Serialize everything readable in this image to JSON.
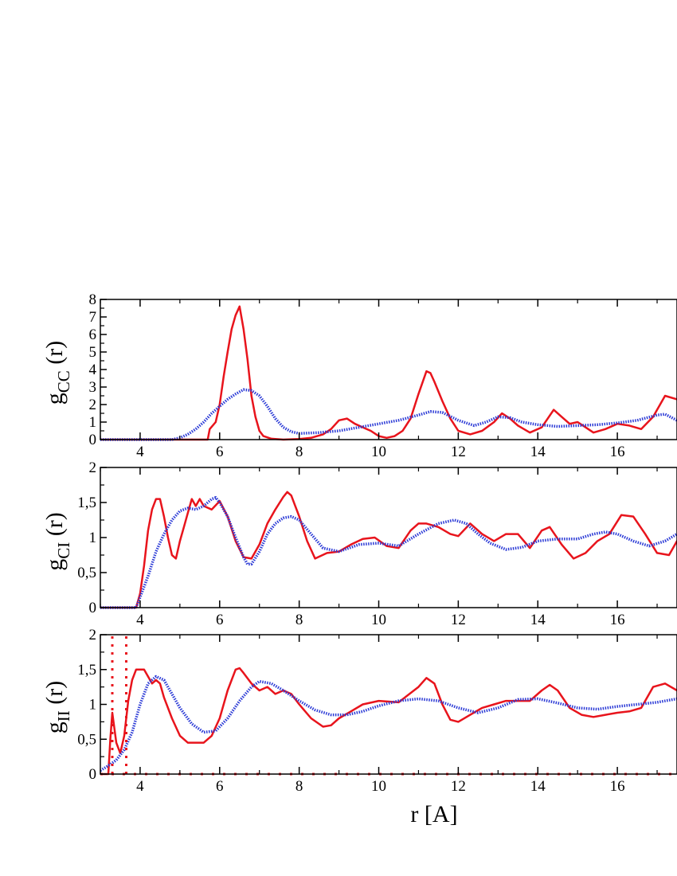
{
  "colors": {
    "md": "#e8141c",
    "avg": "#2b3ad6",
    "axis": "#000000"
  },
  "chart_data": [
    {
      "type": "line",
      "ylabel_main": "g",
      "ylabel_sub": "CC",
      "ylabel_tail": " (r)",
      "xlim": [
        3,
        17.5
      ],
      "ylim": [
        0,
        8
      ],
      "xticks": [
        4,
        6,
        8,
        10,
        12,
        14,
        16
      ],
      "yticks": [
        0,
        1,
        2,
        3,
        4,
        5,
        6,
        7,
        8
      ],
      "ytick_labels": [
        "0",
        "1",
        "2",
        "3",
        "4",
        "5",
        "6",
        "7",
        "8"
      ],
      "series": [
        {
          "x": [
            3.0,
            5.7,
            5.75,
            5.9,
            6.0,
            6.1,
            6.2,
            6.3,
            6.4,
            6.5,
            6.6,
            6.7,
            6.8,
            6.9,
            7.0,
            7.1,
            7.3,
            7.6,
            8.0,
            8.3,
            8.6,
            8.8,
            9.0,
            9.2,
            9.4,
            9.6,
            9.8,
            10.0,
            10.2,
            10.4,
            10.6,
            10.8,
            11.0,
            11.2,
            11.3,
            11.4,
            11.6,
            11.8,
            12.0,
            12.3,
            12.6,
            12.9,
            13.1,
            13.3,
            13.5,
            13.8,
            14.1,
            14.4,
            14.6,
            14.8,
            15.0,
            15.2,
            15.4,
            15.7,
            16.0,
            16.3,
            16.6,
            16.9,
            17.2,
            17.5
          ],
          "y": [
            0,
            0,
            0.6,
            1.0,
            2.0,
            3.6,
            5.0,
            6.3,
            7.1,
            7.6,
            6.3,
            4.6,
            2.5,
            1.3,
            0.5,
            0.2,
            0.05,
            0,
            0.03,
            0.1,
            0.3,
            0.6,
            1.1,
            1.2,
            0.9,
            0.7,
            0.5,
            0.2,
            0.1,
            0.2,
            0.5,
            1.2,
            2.6,
            3.9,
            3.8,
            3.3,
            2.2,
            1.2,
            0.5,
            0.3,
            0.5,
            1.0,
            1.5,
            1.2,
            0.8,
            0.4,
            0.7,
            1.7,
            1.3,
            0.9,
            1.0,
            0.7,
            0.4,
            0.6,
            0.9,
            0.8,
            0.6,
            1.3,
            2.5,
            2.3
          ]
        },
        {
          "x": [
            3.0,
            4.8,
            5.0,
            5.2,
            5.4,
            5.6,
            5.8,
            6.0,
            6.2,
            6.4,
            6.6,
            6.8,
            7.0,
            7.2,
            7.4,
            7.6,
            7.8,
            8.0,
            8.5,
            9.0,
            9.5,
            10.0,
            10.5,
            11.0,
            11.3,
            11.6,
            12.0,
            12.4,
            12.7,
            13.0,
            13.3,
            13.6,
            14.0,
            14.5,
            15.0,
            15.5,
            16.0,
            16.5,
            17.0,
            17.2,
            17.5
          ],
          "y": [
            0,
            0,
            0.1,
            0.3,
            0.6,
            1.0,
            1.5,
            1.9,
            2.3,
            2.6,
            2.85,
            2.8,
            2.5,
            1.9,
            1.2,
            0.7,
            0.45,
            0.35,
            0.4,
            0.5,
            0.7,
            0.9,
            1.1,
            1.4,
            1.6,
            1.55,
            1.1,
            0.8,
            1.0,
            1.3,
            1.25,
            1.0,
            0.85,
            0.75,
            0.8,
            0.85,
            0.95,
            1.1,
            1.4,
            1.45,
            1.1
          ]
        }
      ]
    },
    {
      "type": "line",
      "ylabel_main": "g",
      "ylabel_sub": "CI",
      "ylabel_tail": " (r)",
      "xlim": [
        3,
        17.5
      ],
      "ylim": [
        0,
        2
      ],
      "xticks": [
        4,
        6,
        8,
        10,
        12,
        14,
        16
      ],
      "yticks": [
        0,
        0.5,
        1,
        1.5,
        2
      ],
      "ytick_labels": [
        "0",
        "0,5",
        "1",
        "1,5",
        "2"
      ],
      "series": [
        {
          "x": [
            3.0,
            3.9,
            4.0,
            4.1,
            4.2,
            4.3,
            4.4,
            4.5,
            4.6,
            4.7,
            4.8,
            4.9,
            5.0,
            5.1,
            5.2,
            5.3,
            5.4,
            5.5,
            5.6,
            5.8,
            6.0,
            6.2,
            6.4,
            6.6,
            6.8,
            7.0,
            7.2,
            7.4,
            7.6,
            7.7,
            7.8,
            8.0,
            8.2,
            8.4,
            8.7,
            9.0,
            9.3,
            9.6,
            9.9,
            10.2,
            10.5,
            10.8,
            11.0,
            11.2,
            11.5,
            11.8,
            12.0,
            12.3,
            12.6,
            12.9,
            13.2,
            13.5,
            13.8,
            14.1,
            14.3,
            14.6,
            14.9,
            15.2,
            15.5,
            15.8,
            16.1,
            16.4,
            16.7,
            17.0,
            17.3,
            17.5
          ],
          "y": [
            0,
            0,
            0.2,
            0.6,
            1.1,
            1.4,
            1.55,
            1.55,
            1.3,
            1.0,
            0.75,
            0.7,
            0.95,
            1.15,
            1.35,
            1.55,
            1.45,
            1.55,
            1.45,
            1.4,
            1.52,
            1.3,
            0.95,
            0.72,
            0.7,
            0.9,
            1.2,
            1.4,
            1.58,
            1.65,
            1.6,
            1.3,
            0.95,
            0.7,
            0.78,
            0.8,
            0.9,
            0.98,
            1.0,
            0.88,
            0.85,
            1.1,
            1.2,
            1.2,
            1.15,
            1.05,
            1.02,
            1.2,
            1.05,
            0.95,
            1.05,
            1.05,
            0.85,
            1.1,
            1.15,
            0.9,
            0.7,
            0.78,
            0.95,
            1.05,
            1.32,
            1.3,
            1.05,
            0.78,
            0.75,
            0.95
          ]
        },
        {
          "x": [
            3.0,
            3.9,
            4.0,
            4.2,
            4.4,
            4.6,
            4.8,
            5.0,
            5.2,
            5.4,
            5.6,
            5.8,
            5.9,
            6.0,
            6.2,
            6.4,
            6.6,
            6.7,
            6.8,
            7.0,
            7.2,
            7.4,
            7.6,
            7.8,
            8.0,
            8.3,
            8.6,
            9.0,
            9.5,
            10.0,
            10.5,
            11.0,
            11.5,
            11.9,
            12.2,
            12.5,
            12.8,
            13.2,
            13.6,
            14.0,
            14.5,
            15.0,
            15.4,
            15.7,
            16.0,
            16.4,
            16.8,
            17.2,
            17.5
          ],
          "y": [
            0,
            0,
            0.15,
            0.45,
            0.8,
            1.05,
            1.25,
            1.38,
            1.42,
            1.4,
            1.45,
            1.55,
            1.57,
            1.5,
            1.3,
            1.0,
            0.72,
            0.62,
            0.62,
            0.8,
            1.05,
            1.2,
            1.28,
            1.3,
            1.25,
            1.05,
            0.85,
            0.8,
            0.9,
            0.92,
            0.88,
            1.05,
            1.2,
            1.25,
            1.2,
            1.05,
            0.92,
            0.83,
            0.86,
            0.95,
            0.98,
            0.98,
            1.05,
            1.08,
            1.05,
            0.95,
            0.88,
            0.95,
            1.05
          ]
        }
      ]
    },
    {
      "type": "line",
      "ylabel_main": "g",
      "ylabel_sub": "II",
      "ylabel_tail": " (r)",
      "xlabel": "r [A]",
      "xlim": [
        3,
        17.5
      ],
      "ylim": [
        0,
        2
      ],
      "xticks": [
        4,
        6,
        8,
        10,
        12,
        14,
        16
      ],
      "xtick_labels": [
        "4",
        "6",
        "8",
        "10",
        "12",
        "14",
        "16"
      ],
      "yticks": [
        0,
        0.5,
        1,
        1.5,
        2
      ],
      "ytick_labels": [
        "0",
        "0,5",
        "1",
        "1,5",
        "2"
      ],
      "series": [
        {
          "x": [
            3.0,
            3.2,
            3.25,
            3.3,
            3.4,
            3.5,
            3.6,
            3.7,
            3.8,
            3.9,
            4.0,
            4.1,
            4.2,
            4.3,
            4.4,
            4.5,
            4.6,
            4.8,
            5.0,
            5.2,
            5.4,
            5.6,
            5.8,
            6.0,
            6.2,
            6.4,
            6.5,
            6.6,
            6.8,
            7.0,
            7.2,
            7.4,
            7.6,
            7.8,
            8.0,
            8.3,
            8.6,
            8.8,
            9.0,
            9.3,
            9.6,
            10.0,
            10.5,
            11.0,
            11.2,
            11.4,
            11.6,
            11.8,
            12.0,
            12.3,
            12.6,
            12.9,
            13.2,
            13.5,
            13.8,
            14.1,
            14.3,
            14.5,
            14.8,
            15.1,
            15.4,
            15.7,
            16.0,
            16.3,
            16.6,
            16.9,
            17.2,
            17.5
          ],
          "y": [
            0,
            0,
            0.5,
            0.88,
            0.45,
            0.3,
            0.55,
            1.05,
            1.35,
            1.5,
            1.5,
            1.5,
            1.4,
            1.3,
            1.35,
            1.3,
            1.1,
            0.8,
            0.55,
            0.45,
            0.45,
            0.45,
            0.55,
            0.8,
            1.2,
            1.5,
            1.52,
            1.45,
            1.3,
            1.2,
            1.25,
            1.15,
            1.2,
            1.15,
            1.0,
            0.8,
            0.68,
            0.7,
            0.8,
            0.9,
            1.0,
            1.05,
            1.03,
            1.25,
            1.38,
            1.3,
            1.0,
            0.78,
            0.75,
            0.85,
            0.95,
            1.0,
            1.05,
            1.05,
            1.05,
            1.2,
            1.28,
            1.2,
            0.95,
            0.85,
            0.82,
            0.85,
            0.88,
            0.9,
            0.95,
            1.25,
            1.3,
            1.2
          ]
        },
        {
          "x": [
            3.0,
            3.2,
            3.4,
            3.6,
            3.8,
            4.0,
            4.2,
            4.4,
            4.6,
            4.8,
            5.0,
            5.3,
            5.6,
            5.9,
            6.2,
            6.5,
            6.8,
            7.0,
            7.3,
            7.6,
            8.0,
            8.4,
            8.8,
            9.2,
            9.6,
            10.0,
            10.5,
            11.0,
            11.5,
            12.0,
            12.5,
            13.0,
            13.5,
            14.0,
            14.5,
            15.0,
            15.5,
            16.0,
            16.5,
            17.0,
            17.5
          ],
          "y": [
            0.05,
            0.12,
            0.2,
            0.35,
            0.6,
            1.0,
            1.3,
            1.4,
            1.35,
            1.15,
            0.95,
            0.72,
            0.6,
            0.62,
            0.8,
            1.05,
            1.25,
            1.33,
            1.3,
            1.2,
            1.05,
            0.92,
            0.85,
            0.85,
            0.9,
            0.98,
            1.05,
            1.08,
            1.05,
            0.95,
            0.88,
            0.95,
            1.07,
            1.08,
            1.02,
            0.95,
            0.93,
            0.97,
            1.0,
            1.03,
            1.08
          ]
        },
        {
          "x": [
            3.3,
            3.3
          ],
          "y": [
            0,
            2
          ]
        },
        {
          "x": [
            3.65,
            3.65
          ],
          "y": [
            0,
            2
          ]
        },
        {
          "x": [
            3.0,
            17.5
          ],
          "y": [
            0,
            0
          ]
        }
      ]
    }
  ]
}
